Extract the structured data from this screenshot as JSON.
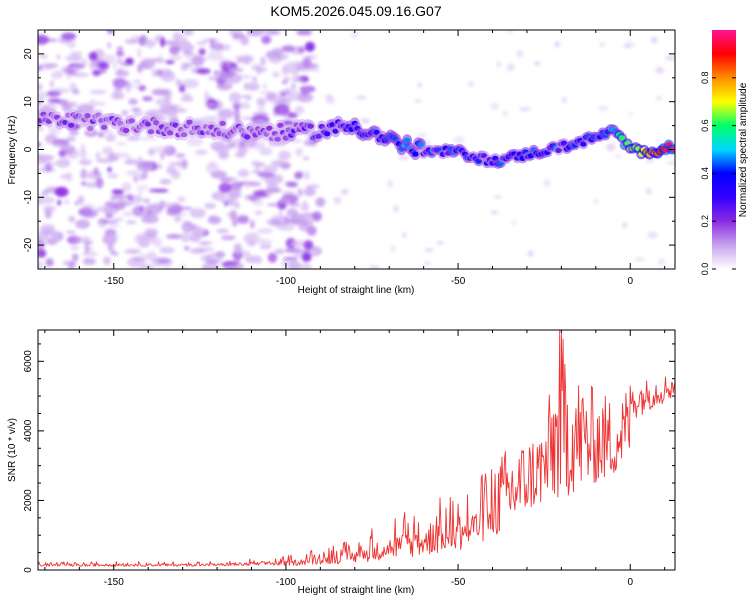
{
  "title": "KOM5.2026.045.09.16.G07",
  "chart_data": [
    {
      "type": "heatmap",
      "xlabel": "Height of straight line (km)",
      "ylabel": "Frequency (Hz)",
      "xlim": [
        -172,
        13
      ],
      "ylim": [
        -25,
        25
      ],
      "xticks": [
        -150,
        -100,
        -50,
        0
      ],
      "yticks": [
        20,
        10,
        0,
        -10,
        -20
      ],
      "colorbar": {
        "label": "Normalized spectral amplitude",
        "range": [
          0,
          1
        ],
        "ticks": [
          "0.0",
          "0.2",
          "0.4",
          "0.6",
          "0.8"
        ],
        "stops": [
          "#ffffff",
          "#c7a3ee",
          "#8a2be2",
          "#3300ff",
          "#0000ff",
          "#00d8ff",
          "#00ff66",
          "#ffff00",
          "#ff8c00",
          "#ff0000",
          "#ff1493"
        ]
      },
      "ridge": {
        "x": [
          -172,
          -160,
          -140,
          -120,
          -100,
          -90,
          -80,
          -70,
          -60,
          -50,
          -40,
          -30,
          -20,
          -10,
          -5,
          0,
          5,
          13
        ],
        "freq": [
          6,
          6,
          5,
          4,
          3.5,
          4,
          5,
          2,
          -0.5,
          -0.5,
          -2.5,
          -1,
          0.5,
          2.5,
          4,
          0,
          -0.5,
          0.5
        ]
      }
    },
    {
      "type": "line",
      "xlabel": "Height of straight line (km)",
      "ylabel": "SNR (10 * v/v)",
      "xlim": [
        -172,
        13
      ],
      "ylim": [
        0,
        6900
      ],
      "xticks": [
        -150,
        -100,
        -50,
        0
      ],
      "yticks": [
        0,
        2000,
        4000,
        6000
      ],
      "color": "#ee3333",
      "envelope": {
        "x": [
          -172,
          -120,
          -100,
          -80,
          -70,
          -60,
          -50,
          -40,
          -35,
          -30,
          -25,
          -20,
          -15,
          -10,
          -5,
          0,
          5,
          13
        ],
        "base": [
          100,
          110,
          120,
          200,
          300,
          400,
          550,
          900,
          1200,
          1700,
          1900,
          2000,
          2300,
          2500,
          2700,
          3300,
          3800,
          4300
        ],
        "peak": [
          230,
          260,
          400,
          900,
          1600,
          2000,
          2200,
          3200,
          3600,
          3800,
          4300,
          6900,
          5700,
          5200,
          5000,
          5400,
          5500,
          5700
        ]
      }
    }
  ]
}
